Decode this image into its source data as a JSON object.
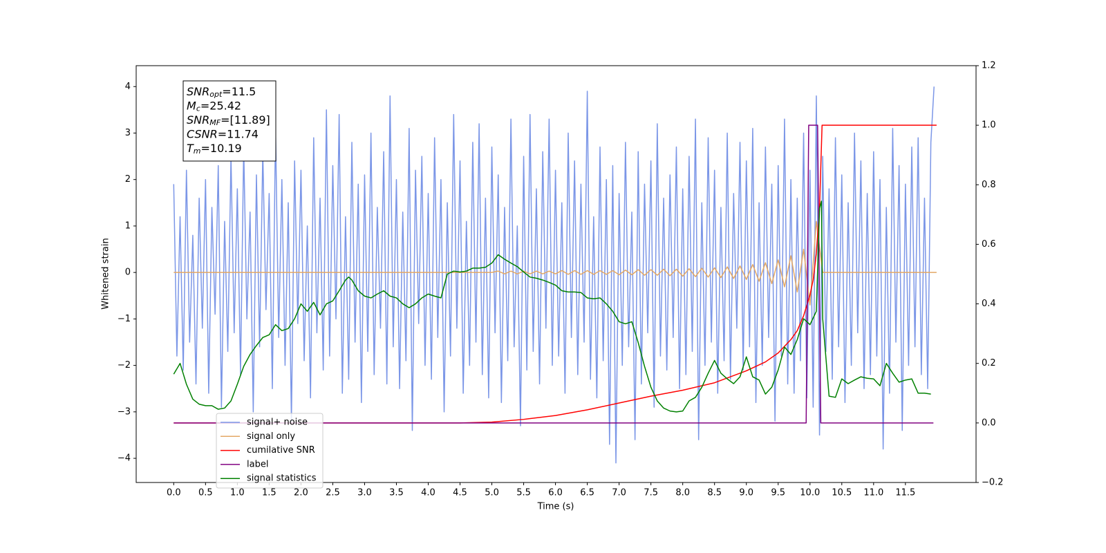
{
  "chart_data": {
    "type": "line",
    "xlabel": "Time (s)",
    "ylabel": "Whitened strain",
    "xlim": [
      -0.59,
      12.61
    ],
    "ylim": [
      -4.52,
      4.45
    ],
    "y2lim": [
      -0.2,
      1.2
    ],
    "xticks": [
      {
        "value": 0,
        "label": "0.0"
      },
      0.5,
      {
        "value": 1,
        "label": "1.0"
      },
      1.5,
      {
        "value": 2,
        "label": "2.0"
      },
      2.5,
      {
        "value": 3,
        "label": "3.0"
      },
      3.5,
      {
        "value": 4,
        "label": "4.0"
      },
      4.5,
      {
        "value": 5,
        "label": "5.0"
      },
      5.5,
      {
        "value": 6,
        "label": "6.0"
      },
      6.5,
      {
        "value": 7,
        "label": "7.0"
      },
      7.5,
      {
        "value": 8,
        "label": "8.0"
      },
      8.5,
      {
        "value": 9,
        "label": "9.0"
      },
      9.5,
      {
        "value": 10,
        "label": "10.0"
      },
      10.5,
      {
        "value": 11,
        "label": "11.0"
      },
      11.5
    ],
    "yticks": [
      {
        "value": -4,
        "label": "−4"
      },
      {
        "value": -3,
        "label": "−3"
      },
      {
        "value": -2,
        "label": "−2"
      },
      {
        "value": -1,
        "label": "−1"
      },
      0,
      1,
      2,
      3,
      4
    ],
    "y2ticks": [
      {
        "value": -0.2,
        "label": "−0.2"
      },
      {
        "value": 0,
        "label": "0.0"
      },
      0.2,
      0.4,
      0.6,
      0.8,
      {
        "value": 1,
        "label": "1.0"
      },
      1.2
    ],
    "legend": "lower left",
    "annotation": [
      {
        "text": "SNR",
        "sub": "opt",
        "rest": "=11.5"
      },
      {
        "text": "M",
        "sub": "c",
        "rest": "=25.42"
      },
      {
        "text": "SNR",
        "sub": "MF",
        "rest": "=[11.89]"
      },
      {
        "text": "CSNR",
        "rest": "=11.74"
      },
      {
        "text": "T",
        "sub": "m",
        "rest": "=10.19"
      }
    ],
    "series": [
      {
        "name": "signal+ noise",
        "color": "#7b96e7",
        "axis": "y",
        "x": [
          0,
          0.05,
          0.1,
          0.15,
          0.2,
          0.25,
          0.3,
          0.35,
          0.4,
          0.45,
          0.5,
          0.55,
          0.6,
          0.65,
          0.7,
          0.75,
          0.8,
          0.85,
          0.9,
          0.95,
          1,
          1.05,
          1.1,
          1.15,
          1.2,
          1.25,
          1.3,
          1.35,
          1.4,
          1.45,
          1.5,
          1.55,
          1.6,
          1.65,
          1.7,
          1.75,
          1.8,
          1.85,
          1.9,
          1.95,
          2,
          2.05,
          2.1,
          2.15,
          2.2,
          2.25,
          2.3,
          2.35,
          2.4,
          2.45,
          2.5,
          2.55,
          2.6,
          2.65,
          2.7,
          2.75,
          2.8,
          2.85,
          2.9,
          2.95,
          3,
          3.05,
          3.1,
          3.15,
          3.2,
          3.25,
          3.3,
          3.35,
          3.4,
          3.45,
          3.5,
          3.55,
          3.6,
          3.65,
          3.7,
          3.75,
          3.8,
          3.85,
          3.9,
          3.95,
          4,
          4.05,
          4.1,
          4.15,
          4.2,
          4.25,
          4.3,
          4.35,
          4.4,
          4.45,
          4.5,
          4.55,
          4.6,
          4.65,
          4.7,
          4.75,
          4.8,
          4.85,
          4.9,
          4.95,
          5,
          5.05,
          5.1,
          5.15,
          5.2,
          5.25,
          5.3,
          5.35,
          5.4,
          5.45,
          5.5,
          5.55,
          5.6,
          5.65,
          5.7,
          5.75,
          5.8,
          5.85,
          5.9,
          5.95,
          6,
          6.05,
          6.1,
          6.15,
          6.2,
          6.25,
          6.3,
          6.35,
          6.4,
          6.45,
          6.5,
          6.55,
          6.6,
          6.65,
          6.7,
          6.75,
          6.8,
          6.85,
          6.9,
          6.95,
          7,
          7.05,
          7.1,
          7.15,
          7.2,
          7.25,
          7.3,
          7.35,
          7.4,
          7.45,
          7.5,
          7.55,
          7.6,
          7.65,
          7.7,
          7.75,
          7.8,
          7.85,
          7.9,
          7.95,
          8,
          8.05,
          8.1,
          8.15,
          8.2,
          8.25,
          8.3,
          8.35,
          8.4,
          8.45,
          8.5,
          8.55,
          8.6,
          8.65,
          8.7,
          8.75,
          8.8,
          8.85,
          8.9,
          8.95,
          9,
          9.05,
          9.1,
          9.15,
          9.2,
          9.25,
          9.3,
          9.35,
          9.4,
          9.45,
          9.5,
          9.55,
          9.6,
          9.65,
          9.7,
          9.75,
          9.8,
          9.85,
          9.9,
          9.95,
          10,
          10.05,
          10.1,
          10.15,
          10.2,
          10.25,
          10.3,
          10.35,
          10.4,
          10.45,
          10.5,
          10.55,
          10.6,
          10.65,
          10.7,
          10.75,
          10.8,
          10.85,
          10.9,
          10.95,
          11,
          11.05,
          11.1,
          11.15,
          11.2,
          11.25,
          11.3,
          11.35,
          11.4,
          11.45,
          11.5,
          11.55,
          11.6,
          11.65,
          11.7,
          11.75,
          11.8,
          11.85,
          11.9,
          11.95
        ],
        "values": [
          1.9,
          -1.8,
          1.2,
          -2.1,
          2.2,
          -1.5,
          0.8,
          -2.4,
          1.6,
          -1.2,
          2.0,
          -2.6,
          1.4,
          -0.9,
          2.3,
          -2.9,
          1.1,
          -1.7,
          2.5,
          -1.3,
          1.8,
          -2.2,
          2.7,
          -1.0,
          1.3,
          -3.0,
          2.1,
          -1.6,
          2.6,
          -0.8,
          1.7,
          -2.5,
          3.1,
          -1.4,
          2.0,
          -2.0,
          1.5,
          -3.2,
          2.4,
          -1.1,
          2.2,
          -1.9,
          1.0,
          -2.7,
          2.9,
          -1.3,
          1.6,
          -2.1,
          3.5,
          -1.8,
          2.3,
          -1.0,
          3.4,
          -2.6,
          1.2,
          -2.3,
          2.8,
          -1.5,
          1.9,
          -2.8,
          2.1,
          -1.7,
          3.0,
          -2.2,
          1.4,
          -1.2,
          2.6,
          -2.4,
          3.8,
          -1.6,
          2.0,
          -2.5,
          1.3,
          -1.9,
          3.1,
          -3.4,
          2.2,
          -1.1,
          2.5,
          -2.0,
          1.7,
          -2.3,
          2.9,
          -1.4,
          2.0,
          -3.0,
          1.5,
          -1.8,
          3.4,
          -1.2,
          2.4,
          -2.6,
          1.1,
          -2.0,
          2.8,
          -1.5,
          3.2,
          -2.2,
          1.6,
          -2.7,
          2.7,
          -1.3,
          2.1,
          -2.8,
          1.4,
          -1.9,
          3.3,
          -1.6,
          1.0,
          -3.3,
          2.5,
          -2.1,
          3.4,
          -1.7,
          1.8,
          -2.4,
          2.6,
          -1.2,
          3.3,
          -2.0,
          2.2,
          -1.8,
          1.5,
          -2.6,
          3.0,
          -1.4,
          2.4,
          -2.2,
          1.9,
          -1.5,
          3.9,
          -2.3,
          1.2,
          -2.7,
          2.7,
          -1.9,
          2.0,
          -3.7,
          2.3,
          -4.1,
          1.7,
          -2.0,
          2.8,
          -1.6,
          1.3,
          -3.6,
          2.6,
          -2.4,
          1.9,
          -1.3,
          2.4,
          -2.9,
          3.2,
          -1.8,
          1.6,
          -2.1,
          2.1,
          -1.4,
          2.7,
          -2.5,
          1.8,
          -2.2,
          2.5,
          -1.7,
          3.3,
          -3.6,
          1.5,
          -2.0,
          2.9,
          -1.5,
          2.2,
          -2.6,
          1.4,
          -1.9,
          3.0,
          -2.3,
          1.7,
          -1.2,
          2.8,
          -2.1,
          2.4,
          -1.6,
          3.1,
          -2.8,
          1.5,
          -2.0,
          2.7,
          -1.4,
          1.9,
          -3.2,
          2.3,
          -1.8,
          3.3,
          -2.4,
          2.0,
          -2.6,
          1.6,
          -1.9,
          3.0,
          -2.7,
          2.2,
          -2.9,
          3.8,
          -3.5,
          2.5,
          -1.7,
          1.8,
          -2.3,
          2.9,
          -1.6,
          2.1,
          -2.8,
          1.5,
          -2.0,
          3.0,
          -1.3,
          2.4,
          -2.5,
          1.7,
          -2.2,
          2.6,
          -1.8,
          2.0,
          -3.8,
          1.4,
          -2.6,
          3.1,
          -1.5,
          2.3,
          -3.4,
          1.9,
          -2.0,
          2.7,
          -1.6,
          2.9,
          -2.2,
          1.6,
          -2.5,
          2.8,
          4.0
        ]
      },
      {
        "name": "signal only",
        "color": "#e3a865",
        "axis": "y",
        "x": [
          0,
          5.0,
          5.1,
          5.2,
          5.3,
          5.4,
          5.5,
          5.6,
          5.7,
          5.8,
          5.9,
          6.0,
          6.1,
          6.2,
          6.3,
          6.4,
          6.5,
          6.6,
          6.7,
          6.8,
          6.9,
          7.0,
          7.1,
          7.2,
          7.3,
          7.4,
          7.5,
          7.6,
          7.7,
          7.8,
          7.9,
          8.0,
          8.1,
          8.2,
          8.3,
          8.4,
          8.5,
          8.6,
          8.7,
          8.8,
          8.9,
          9.0,
          9.1,
          9.2,
          9.3,
          9.4,
          9.5,
          9.6,
          9.7,
          9.8,
          9.9,
          10.0,
          10.1,
          10.2,
          11.99
        ],
        "values": [
          0,
          0,
          0.03,
          -0.03,
          0.03,
          -0.03,
          0.03,
          -0.03,
          0.03,
          -0.03,
          0.03,
          -0.03,
          0.04,
          -0.04,
          0.04,
          -0.04,
          0.04,
          -0.04,
          0.04,
          -0.04,
          0.04,
          -0.05,
          0.05,
          -0.05,
          0.06,
          -0.06,
          0.06,
          -0.06,
          0.07,
          -0.07,
          0.07,
          -0.08,
          0.08,
          -0.09,
          0.09,
          -0.1,
          0.1,
          -0.11,
          0.12,
          -0.13,
          0.14,
          -0.15,
          0.17,
          -0.19,
          0.21,
          -0.24,
          0.27,
          -0.31,
          0.36,
          -0.42,
          0.5,
          -0.7,
          1.1,
          0,
          0
        ]
      },
      {
        "name": "cumilative SNR",
        "color": "#ff0000",
        "axis": "y2",
        "x": [
          0,
          4.5,
          5.0,
          5.5,
          6.0,
          6.5,
          7.0,
          7.5,
          8.0,
          8.5,
          9.0,
          9.3,
          9.5,
          9.7,
          9.8,
          9.9,
          10.0,
          10.05,
          10.1,
          10.15,
          10.19,
          11.99
        ],
        "values": [
          0,
          0,
          0.003,
          0.012,
          0.025,
          0.044,
          0.067,
          0.09,
          0.11,
          0.135,
          0.175,
          0.205,
          0.235,
          0.28,
          0.31,
          0.36,
          0.43,
          0.48,
          0.57,
          0.72,
          1.0,
          1.0
        ]
      },
      {
        "name": "label",
        "color": "#800080",
        "axis": "y2",
        "x": [
          0,
          9.94,
          9.98,
          10.12,
          10.17,
          11.94
        ],
        "values": [
          0,
          0,
          1,
          1,
          0,
          0
        ]
      },
      {
        "name": "signal statistics",
        "color": "#008000",
        "axis": "y2",
        "x": [
          0,
          0.1,
          0.2,
          0.3,
          0.4,
          0.5,
          0.6,
          0.7,
          0.8,
          0.9,
          1.0,
          1.1,
          1.2,
          1.3,
          1.4,
          1.5,
          1.6,
          1.7,
          1.8,
          1.9,
          2.0,
          2.1,
          2.2,
          2.3,
          2.4,
          2.5,
          2.6,
          2.7,
          2.75,
          2.8,
          2.9,
          3.0,
          3.1,
          3.2,
          3.3,
          3.4,
          3.5,
          3.6,
          3.7,
          3.8,
          3.9,
          4.0,
          4.1,
          4.2,
          4.3,
          4.4,
          4.5,
          4.6,
          4.7,
          4.8,
          4.9,
          5.0,
          5.1,
          5.2,
          5.3,
          5.4,
          5.5,
          5.6,
          5.7,
          5.8,
          5.9,
          6.0,
          6.1,
          6.2,
          6.3,
          6.4,
          6.5,
          6.6,
          6.7,
          6.8,
          6.9,
          7.0,
          7.1,
          7.2,
          7.3,
          7.4,
          7.5,
          7.6,
          7.7,
          7.8,
          7.9,
          8.0,
          8.1,
          8.2,
          8.3,
          8.4,
          8.5,
          8.6,
          8.7,
          8.8,
          8.9,
          9.0,
          9.1,
          9.2,
          9.3,
          9.4,
          9.5,
          9.6,
          9.7,
          9.8,
          9.9,
          10.0,
          10.1,
          10.15,
          10.18,
          10.2,
          10.3,
          10.4,
          10.5,
          10.6,
          10.7,
          10.8,
          10.9,
          11.0,
          11.1,
          11.2,
          11.3,
          11.4,
          11.5,
          11.6,
          11.7,
          11.8,
          11.9
        ],
        "values": [
          0.164,
          0.2,
          0.13,
          0.08,
          0.063,
          0.058,
          0.058,
          0.046,
          0.05,
          0.074,
          0.13,
          0.19,
          0.23,
          0.26,
          0.287,
          0.296,
          0.33,
          0.31,
          0.317,
          0.35,
          0.4,
          0.375,
          0.405,
          0.363,
          0.4,
          0.41,
          0.444,
          0.48,
          0.49,
          0.48,
          0.444,
          0.426,
          0.42,
          0.433,
          0.444,
          0.426,
          0.42,
          0.4,
          0.387,
          0.4,
          0.42,
          0.433,
          0.426,
          0.42,
          0.5,
          0.51,
          0.507,
          0.51,
          0.52,
          0.52,
          0.523,
          0.537,
          0.565,
          0.55,
          0.537,
          0.525,
          0.507,
          0.49,
          0.486,
          0.48,
          0.472,
          0.463,
          0.444,
          0.44,
          0.44,
          0.438,
          0.42,
          0.417,
          0.42,
          0.4,
          0.375,
          0.34,
          0.333,
          0.34,
          0.27,
          0.19,
          0.12,
          0.074,
          0.05,
          0.04,
          0.037,
          0.04,
          0.074,
          0.086,
          0.12,
          0.167,
          0.21,
          0.167,
          0.148,
          0.132,
          0.155,
          0.222,
          0.155,
          0.144,
          0.097,
          0.12,
          0.178,
          0.255,
          0.23,
          0.28,
          0.35,
          0.33,
          0.375,
          0.72,
          0.745,
          0.35,
          0.09,
          0.086,
          0.148,
          0.132,
          0.144,
          0.155,
          0.15,
          0.148,
          0.125,
          0.2,
          0.167,
          0.137,
          0.144,
          0.148,
          0.1,
          0.1,
          0.097
        ]
      }
    ]
  }
}
